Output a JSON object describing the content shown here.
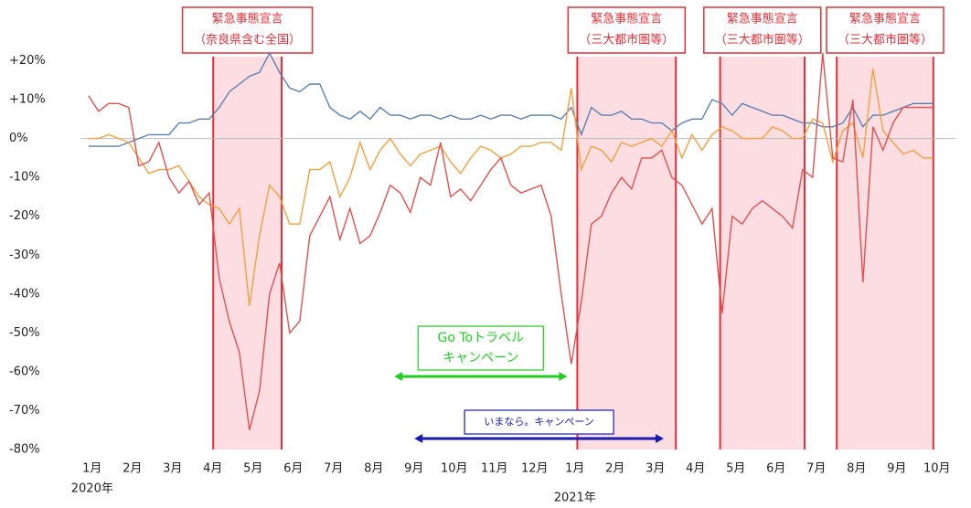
{
  "chart_data": {
    "type": "line",
    "x": [
      0,
      0.25,
      0.5,
      0.75,
      1,
      1.25,
      1.5,
      1.75,
      2,
      2.25,
      2.5,
      2.75,
      3,
      3.25,
      3.5,
      3.75,
      4,
      4.25,
      4.5,
      4.75,
      5,
      5.25,
      5.5,
      5.75,
      6,
      6.25,
      6.5,
      6.75,
      7,
      7.25,
      7.5,
      7.75,
      8,
      8.25,
      8.5,
      8.75,
      9,
      9.25,
      9.5,
      9.75,
      10,
      10.25,
      10.5,
      10.75,
      11,
      11.25,
      11.5,
      11.75,
      12,
      12.25,
      12.5,
      12.75,
      13,
      13.25,
      13.5,
      13.75,
      14,
      14.25,
      14.5,
      14.75,
      15,
      15.25,
      15.5,
      15.75,
      16,
      16.25,
      16.5,
      16.75,
      17,
      17.25,
      17.5,
      17.75,
      18,
      18.25,
      18.5,
      18.75,
      19,
      19.25,
      19.5,
      19.75,
      20,
      20.25,
      20.5,
      20.75,
      21
    ],
    "xlim": [
      -0.2,
      21.55
    ],
    "xticks": [
      {
        "value": 0,
        "label": "1月"
      },
      {
        "value": 1,
        "label": "2月"
      },
      {
        "value": 2,
        "label": "3月"
      },
      {
        "value": 3,
        "label": "4月"
      },
      {
        "value": 4,
        "label": "5月"
      },
      {
        "value": 5,
        "label": "6月"
      },
      {
        "value": 6,
        "label": "7月"
      },
      {
        "value": 7,
        "label": "8月"
      },
      {
        "value": 8,
        "label": "9月"
      },
      {
        "value": 9,
        "label": "10月"
      },
      {
        "value": 10,
        "label": "11月"
      },
      {
        "value": 11,
        "label": "12月"
      },
      {
        "value": 12,
        "label": "1月"
      },
      {
        "value": 13,
        "label": "2月"
      },
      {
        "value": 14,
        "label": "3月"
      },
      {
        "value": 15,
        "label": "4月"
      },
      {
        "value": 16,
        "label": "5月"
      },
      {
        "value": 17,
        "label": "6月"
      },
      {
        "value": 18,
        "label": "7月"
      },
      {
        "value": 19,
        "label": "8月"
      },
      {
        "value": 20,
        "label": "9月"
      },
      {
        "value": 21,
        "label": "10月"
      }
    ],
    "year_labels": [
      {
        "x": 0,
        "label": "2020年"
      },
      {
        "x": 12,
        "label": "2021年"
      }
    ],
    "ylim": [
      -80,
      22
    ],
    "yticks": [
      {
        "value": 20,
        "label": "+20%"
      },
      {
        "value": 10,
        "label": "+10%"
      },
      {
        "value": 0,
        "label": "0%"
      },
      {
        "value": -10,
        "label": "-10%"
      },
      {
        "value": -20,
        "label": "-20%"
      },
      {
        "value": -30,
        "label": "-30%"
      },
      {
        "value": -40,
        "label": "-40%"
      },
      {
        "value": -50,
        "label": "-50%"
      },
      {
        "value": -60,
        "label": "-60%"
      },
      {
        "value": -70,
        "label": "-70%"
      },
      {
        "value": -80,
        "label": "-80%"
      }
    ],
    "zero_line": true,
    "series": [
      {
        "color": "#5b7fb0",
        "values": [
          -2,
          -2,
          -2,
          -2,
          -1,
          0,
          1,
          1,
          1,
          4,
          4,
          5,
          5,
          8,
          12,
          14,
          16,
          17,
          22,
          17,
          13,
          12,
          14,
          14,
          8,
          6,
          5,
          7,
          5,
          8,
          6,
          6,
          5,
          6,
          6,
          5,
          6,
          5,
          5,
          6,
          5,
          6,
          6,
          5,
          6,
          6,
          6,
          5,
          8,
          1,
          8,
          6,
          6,
          7,
          5,
          5,
          4,
          4,
          2,
          4,
          5,
          5,
          10,
          9,
          6,
          9,
          8,
          7,
          6,
          6,
          5,
          4,
          4,
          3,
          3,
          4,
          8,
          3,
          6,
          6,
          7,
          8,
          9,
          9,
          9
        ]
      },
      {
        "color": "#f0a040",
        "values": [
          0,
          0,
          1,
          0,
          -1,
          -5,
          -9,
          -8,
          -8,
          -7,
          -11,
          -15,
          -17,
          -18,
          -22,
          -18,
          -43,
          -25,
          -12,
          -15,
          -22,
          -22,
          -8,
          -8,
          -6,
          -15,
          -10,
          -1,
          -8,
          -3,
          0,
          -4,
          -7,
          -4,
          -3,
          -2,
          -6,
          -9,
          -5,
          -2,
          -3,
          -5,
          -4,
          -2,
          -2,
          -1,
          -1,
          -3,
          13,
          -8,
          -2,
          -3,
          -6,
          -1,
          -2,
          -1,
          0,
          -2,
          2,
          -5,
          1,
          -3,
          1,
          3,
          2,
          0,
          0,
          0,
          3,
          2,
          0,
          0,
          5,
          4,
          -6,
          2,
          4,
          -5,
          18,
          2,
          -1,
          -4,
          -3,
          -5,
          -5
        ]
      },
      {
        "color": "#e05050",
        "values": [
          11,
          7,
          9,
          9,
          8,
          -7,
          -6,
          -1,
          -10,
          -14,
          -11,
          -17,
          -14,
          -36,
          -47,
          -55,
          -75,
          -65,
          -40,
          -32,
          -50,
          -47,
          -25,
          -20,
          -15,
          -26,
          -18,
          -27,
          -25,
          -19,
          -12,
          -14,
          -19,
          -10,
          -12,
          -1,
          -15,
          -13,
          -16,
          -12,
          -8,
          -5,
          -12,
          -14,
          -13,
          -12,
          -20,
          -40,
          -58,
          -42,
          -22,
          -20,
          -14,
          -10,
          -13,
          -5,
          -5,
          -3,
          -10,
          -12,
          -17,
          -22,
          -18,
          -45,
          -20,
          -22,
          -18,
          -16,
          -18,
          -20,
          -23,
          -8,
          -10,
          22,
          -5,
          -6,
          10,
          -37,
          3,
          -3,
          4,
          8,
          8,
          8,
          8
        ]
      }
    ],
    "periods": [
      {
        "start": 3.1,
        "end": 4.8,
        "label": [
          "緊急事態宣言",
          "（奈良県含む全国）"
        ]
      },
      {
        "start": 12.15,
        "end": 14.6,
        "label": [
          "緊急事態宣言",
          "（三大都市圏等）"
        ]
      },
      {
        "start": 15.7,
        "end": 17.8,
        "label": [
          "緊急事態宣言",
          "（三大都市圏等）"
        ]
      },
      {
        "start": 18.6,
        "end": 21.0,
        "label": [
          "緊急事態宣言",
          "（三大都市圏等）"
        ]
      }
    ],
    "campaigns": [
      {
        "start": 7.6,
        "end": 11.9,
        "color": "#22cc22",
        "label": [
          "Go Toトラベル",
          "キャンペーン"
        ]
      },
      {
        "start": 8.1,
        "end": 14.3,
        "color": "#1a1aaa",
        "label": [
          "いまなら。キャンペーン"
        ]
      }
    ]
  }
}
